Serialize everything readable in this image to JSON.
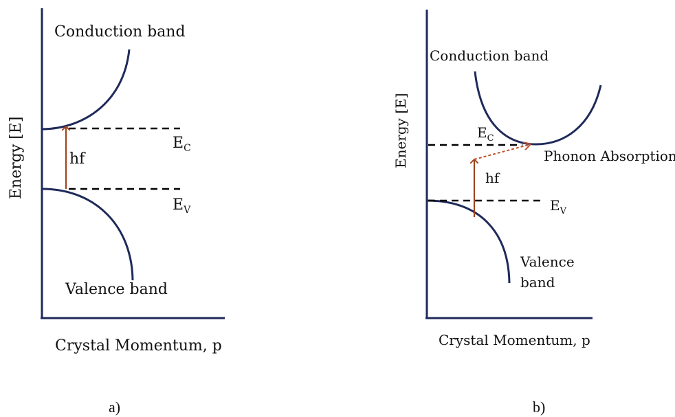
{
  "panel_a": {
    "y_axis_label": "Energy [E]",
    "x_axis_label": "Crystal Momentum, p",
    "conduction_label": "Conduction band",
    "valence_label": "Valence band",
    "photon_label": "hf",
    "ec_main": "E",
    "ec_sub": "C",
    "ev_main": "E",
    "ev_sub": "V",
    "caption": "a)"
  },
  "panel_b": {
    "y_axis_label": "Energy [E]",
    "x_axis_label": "Crystal Momentum, p",
    "conduction_label": "Conduction band",
    "valence_label_line1": "Valence",
    "valence_label_line2": "band",
    "photon_label": "hf",
    "phonon_label": "Phonon Absorption",
    "ec_main": "E",
    "ec_sub": "C",
    "ev_main": "E",
    "ev_sub": "V",
    "caption": "b)"
  },
  "colors": {
    "axis": "#1f2a5a",
    "band_curve": "#1f2a5a",
    "level_line": "#000000",
    "photon_arrow": "#a0441c",
    "phonon_arrow": "#c0502a"
  }
}
